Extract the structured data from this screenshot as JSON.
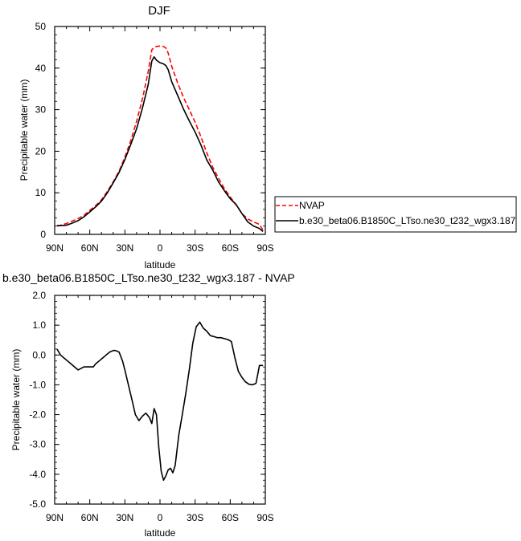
{
  "chart_data": [
    {
      "type": "line",
      "title": "DJF",
      "xlabel": "latitude",
      "ylabel": "Precipitable water (mm)",
      "xlim": [
        90,
        -90
      ],
      "ylim": [
        0,
        50
      ],
      "x_ticks": [
        90,
        60,
        30,
        0,
        -30,
        -60,
        -90
      ],
      "x_tick_labels": [
        "90N",
        "60N",
        "30N",
        "0",
        "30S",
        "60S",
        "90S"
      ],
      "y_ticks": [
        0,
        10,
        20,
        30,
        40,
        50
      ],
      "y_tick_labels": [
        "0",
        "10",
        "20",
        "30",
        "40",
        "50"
      ],
      "legend_position": "right",
      "series": [
        {
          "name": "NVAP",
          "color": "#ff0000",
          "dash": true,
          "x": [
            88,
            85,
            80,
            75,
            70,
            65,
            60,
            55,
            50,
            45,
            40,
            35,
            30,
            25,
            20,
            15,
            10,
            7,
            5,
            3,
            0,
            -3,
            -5,
            -7,
            -10,
            -15,
            -20,
            -25,
            -30,
            -35,
            -40,
            -45,
            -50,
            -55,
            -60,
            -65,
            -70,
            -75,
            -80,
            -85,
            -88
          ],
          "y": [
            2.0,
            2.2,
            2.6,
            3.2,
            3.8,
            4.6,
            5.8,
            6.9,
            8.3,
            10.3,
            12.6,
            15.2,
            18.6,
            22.5,
            27.2,
            32.6,
            39.2,
            44.4,
            44.9,
            45.2,
            45.3,
            45.2,
            44.8,
            43.6,
            40.4,
            36.5,
            33.0,
            30.0,
            27.0,
            23.5,
            19.6,
            16.2,
            13.5,
            11.0,
            9.0,
            7.1,
            5.0,
            3.7,
            3.0,
            2.4,
            1.0
          ]
        },
        {
          "name": "b.e30_beta06.B1850C_LTso.ne30_t232_wgx3.187",
          "color": "#000000",
          "dash": false,
          "x": [
            88,
            85,
            80,
            75,
            70,
            65,
            60,
            55,
            50,
            45,
            40,
            35,
            30,
            25,
            20,
            15,
            10,
            7,
            5,
            3,
            0,
            -3,
            -5,
            -7,
            -10,
            -15,
            -20,
            -25,
            -30,
            -35,
            -40,
            -45,
            -50,
            -55,
            -60,
            -65,
            -70,
            -75,
            -80,
            -85,
            -88
          ],
          "y": [
            2.1,
            2.1,
            2.2,
            2.7,
            3.3,
            4.2,
            5.4,
            6.6,
            8.0,
            10.0,
            12.4,
            14.9,
            18.0,
            21.6,
            25.4,
            30.4,
            36.1,
            41.7,
            42.7,
            41.9,
            41.3,
            41.0,
            40.6,
            39.6,
            36.7,
            33.5,
            30.2,
            27.3,
            24.6,
            21.5,
            17.9,
            15.5,
            12.6,
            10.5,
            8.6,
            7.2,
            5.0,
            3.0,
            2.0,
            1.4,
            0.7
          ]
        }
      ]
    },
    {
      "type": "line",
      "title": "b.e30_beta06.B1850C_LTso.ne30_t232_wgx3.187 - NVAP",
      "xlabel": "latitude",
      "ylabel": "Precipitable water (mm)",
      "xlim": [
        90,
        -90
      ],
      "ylim": [
        -5,
        2
      ],
      "x_ticks": [
        90,
        60,
        30,
        0,
        -30,
        -60,
        -90
      ],
      "x_tick_labels": [
        "90N",
        "60N",
        "30N",
        "0",
        "30S",
        "60S",
        "90S"
      ],
      "y_ticks": [
        2,
        1,
        0,
        -1,
        -2,
        -3,
        -4,
        -5
      ],
      "y_tick_labels": [
        "2.0",
        "1.0",
        "0.0",
        "-1.0",
        "-2.0",
        "-3.0",
        "-4.0",
        "-5.0"
      ],
      "series": [
        {
          "color": "#000000",
          "dash": false,
          "x": [
            88,
            85,
            82,
            79,
            76,
            73,
            70,
            65,
            62,
            60,
            57,
            55,
            52,
            49,
            46,
            43,
            40,
            38,
            35,
            32,
            30,
            27,
            24,
            21,
            18,
            15,
            12,
            9,
            7,
            5,
            3,
            1,
            -1,
            -3,
            -5,
            -7,
            -9,
            -11,
            -13,
            -16,
            -19,
            -22,
            -25,
            -28,
            -31,
            -34,
            -37,
            -40,
            -43,
            -46,
            -49,
            -52,
            -55,
            -58,
            -61,
            -64,
            -67,
            -70,
            -73,
            -76,
            -79,
            -82,
            -85,
            -88
          ],
          "y": [
            0.2,
            0.0,
            -0.1,
            -0.2,
            -0.3,
            -0.4,
            -0.5,
            -0.4,
            -0.4,
            -0.4,
            -0.4,
            -0.3,
            -0.2,
            -0.1,
            0.0,
            0.1,
            0.15,
            0.15,
            0.1,
            -0.2,
            -0.5,
            -1.0,
            -1.5,
            -2.0,
            -2.2,
            -2.05,
            -1.95,
            -2.1,
            -2.3,
            -1.8,
            -2.0,
            -3.1,
            -3.9,
            -4.2,
            -4.05,
            -3.85,
            -3.8,
            -3.95,
            -3.7,
            -2.7,
            -2.0,
            -1.3,
            -0.5,
            0.4,
            0.95,
            1.1,
            0.9,
            0.8,
            0.65,
            0.62,
            0.58,
            0.58,
            0.55,
            0.52,
            0.45,
            -0.1,
            -0.55,
            -0.75,
            -0.9,
            -0.98,
            -1.0,
            -0.95,
            -0.35,
            -0.35
          ]
        }
      ]
    }
  ]
}
